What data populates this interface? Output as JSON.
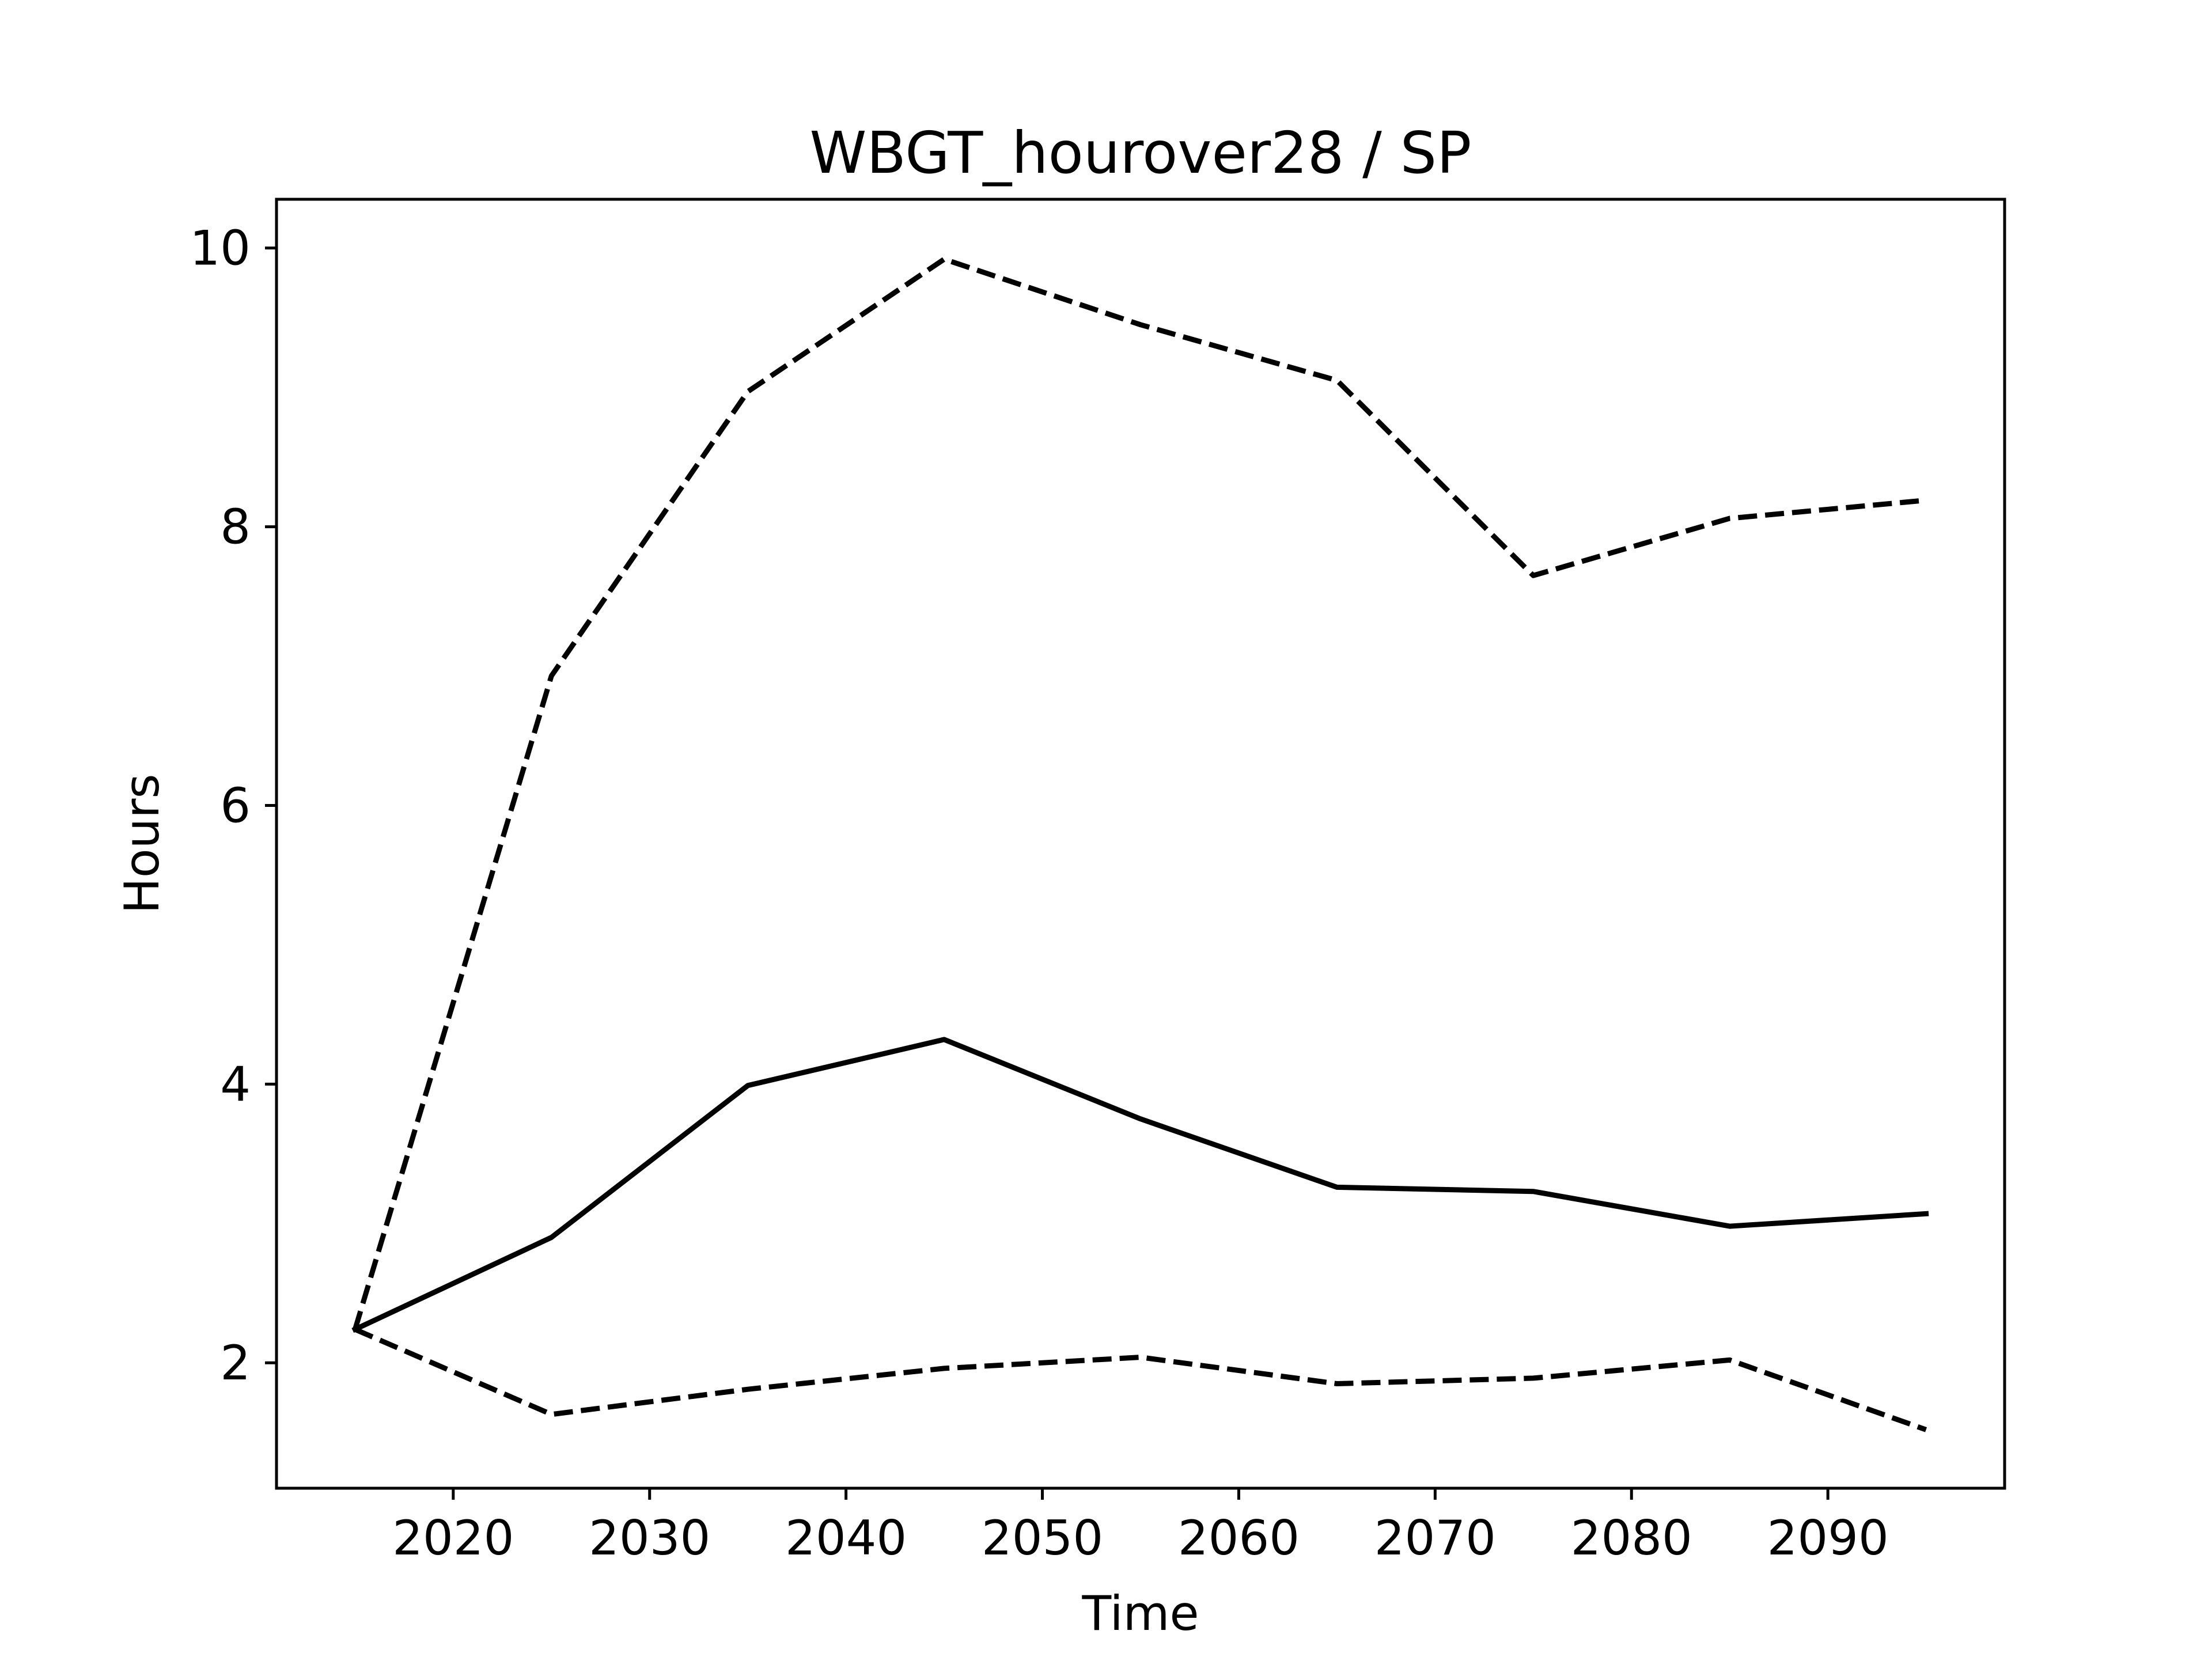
{
  "chart_data": {
    "type": "line",
    "title": "WBGT_hourover28 / SP",
    "xlabel": "Time",
    "ylabel": "Hours",
    "xlim": [
      2011,
      2099
    ],
    "ylim": [
      1.1,
      10.35
    ],
    "xticks": [
      2020,
      2030,
      2040,
      2050,
      2060,
      2070,
      2080,
      2090
    ],
    "yticks": [
      2,
      4,
      6,
      8,
      10
    ],
    "grid": false,
    "x": [
      2015,
      2025,
      2035,
      2045,
      2055,
      2065,
      2075,
      2085,
      2095
    ],
    "series": [
      {
        "style": "solid",
        "color": "#000000",
        "values": [
          2.24,
          2.9,
          3.99,
          4.32,
          3.75,
          3.26,
          3.23,
          2.98,
          3.07
        ]
      },
      {
        "style": "dashed",
        "color": "#000000",
        "values": [
          2.24,
          6.93,
          8.97,
          9.92,
          9.45,
          9.05,
          7.65,
          8.06,
          8.19
        ]
      },
      {
        "style": "dashed",
        "color": "#000000",
        "values": [
          2.24,
          1.63,
          1.81,
          1.96,
          2.04,
          1.85,
          1.89,
          2.02,
          1.52
        ]
      }
    ]
  }
}
